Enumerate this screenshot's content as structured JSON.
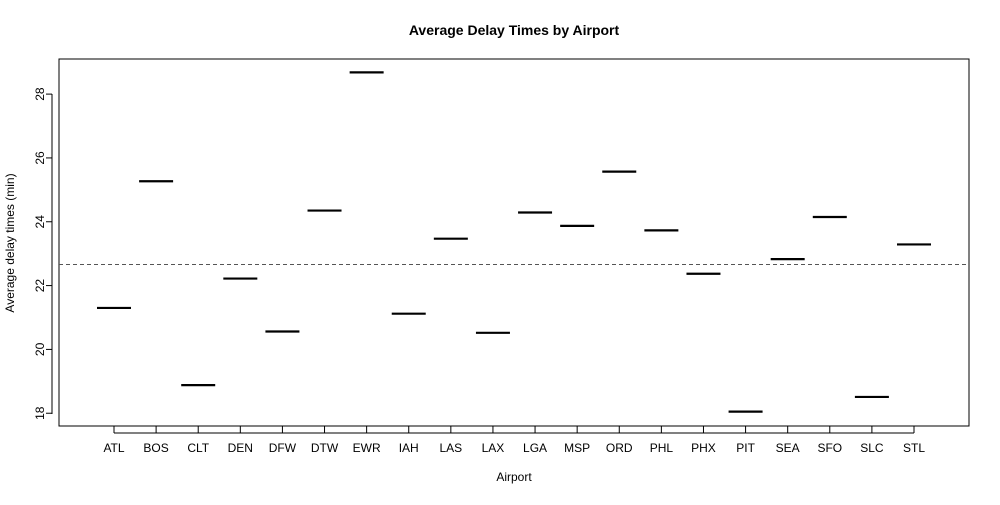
{
  "chart_data": {
    "type": "bar",
    "title": "Average Delay Times by Airport",
    "xlabel": "Airport",
    "ylabel": "Average delay times (min)",
    "categories": [
      "ATL",
      "BOS",
      "CLT",
      "DEN",
      "DFW",
      "DTW",
      "EWR",
      "IAH",
      "LAS",
      "LAX",
      "LGA",
      "MSP",
      "ORD",
      "PHL",
      "PHX",
      "PIT",
      "SEA",
      "SFO",
      "SLC",
      "STL"
    ],
    "values": [
      21.3,
      25.27,
      18.88,
      22.22,
      20.56,
      24.35,
      28.68,
      21.12,
      23.47,
      20.52,
      24.29,
      23.87,
      25.57,
      23.73,
      22.37,
      18.05,
      22.83,
      24.15,
      18.51,
      23.29
    ],
    "reference_line": {
      "value": 22.66,
      "style": "dashed",
      "color": "#555555"
    },
    "yticks": [
      18,
      20,
      22,
      24,
      26,
      28
    ],
    "ylim": [
      17.6,
      29.1
    ],
    "grid": false,
    "marker_color": "#000000"
  }
}
